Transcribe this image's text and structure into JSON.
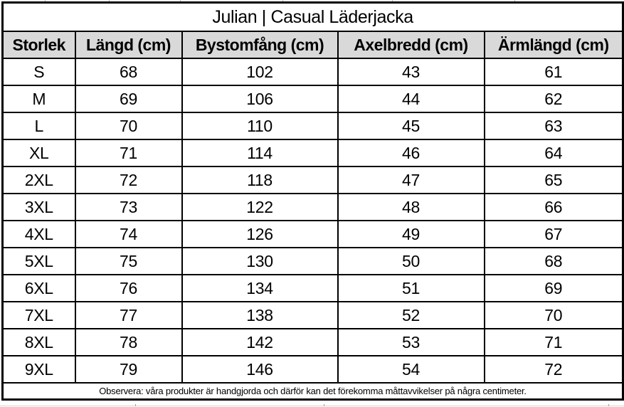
{
  "chart_data": {
    "type": "table",
    "title": "Julian | Casual Läderjacka",
    "columns": [
      "Storlek",
      "Längd (cm)",
      "Bystomfång (cm)",
      "Axelbredd (cm)",
      "Ärmlängd (cm)"
    ],
    "rows": [
      [
        "S",
        "68",
        "102",
        "43",
        "61"
      ],
      [
        "M",
        "69",
        "106",
        "44",
        "62"
      ],
      [
        "L",
        "70",
        "110",
        "45",
        "63"
      ],
      [
        "XL",
        "71",
        "114",
        "46",
        "64"
      ],
      [
        "2XL",
        "72",
        "118",
        "47",
        "65"
      ],
      [
        "3XL",
        "73",
        "122",
        "48",
        "66"
      ],
      [
        "4XL",
        "74",
        "126",
        "49",
        "67"
      ],
      [
        "5XL",
        "75",
        "130",
        "50",
        "68"
      ],
      [
        "6XL",
        "76",
        "134",
        "51",
        "69"
      ],
      [
        "7XL",
        "77",
        "138",
        "52",
        "70"
      ],
      [
        "8XL",
        "78",
        "142",
        "53",
        "71"
      ],
      [
        "9XL",
        "79",
        "146",
        "54",
        "72"
      ]
    ],
    "footnote": "Observera: våra produkter är handgjorda och därför kan det förekomma måttavvikelser på några centimeter.",
    "layout_hints": {
      "header_row_shaded": true,
      "title_row_merged": true,
      "footnote_row_merged": true
    }
  },
  "colors": {
    "header_bg": "#d9d9d9",
    "border": "#000000",
    "background": "#ffffff",
    "text": "#000000"
  }
}
